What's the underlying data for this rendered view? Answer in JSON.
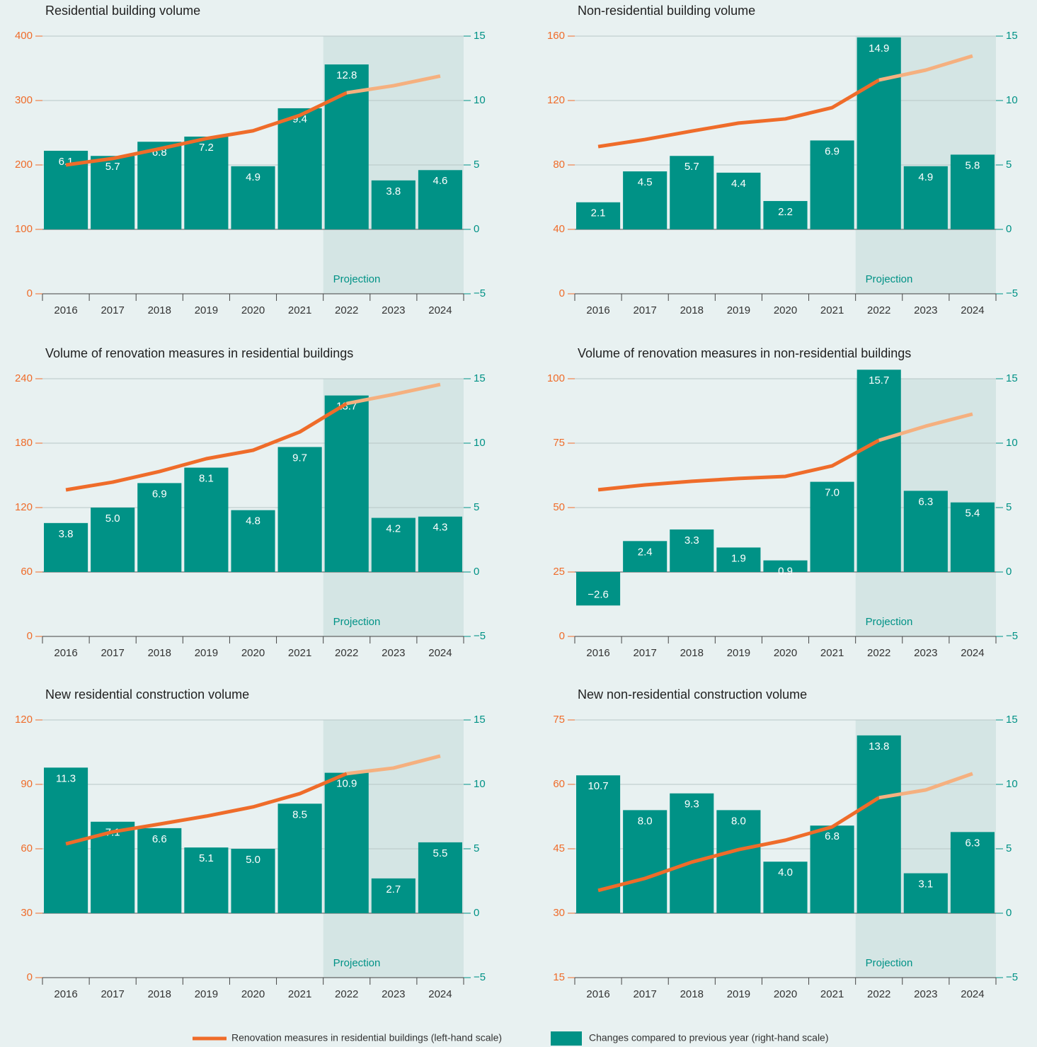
{
  "chart_data": [
    {
      "type": "bar",
      "title": "Residential building volume",
      "categories": [
        "2016",
        "2017",
        "2018",
        "2019",
        "2020",
        "2021",
        "2022",
        "2023",
        "2024"
      ],
      "series": [
        {
          "axis": "y2",
          "values": [
            6.1,
            5.7,
            6.8,
            7.2,
            4.9,
            9.4,
            12.8,
            3.8,
            4.6
          ],
          "value_labels": [
            "6.1",
            "5.7",
            "6.8",
            "7.2",
            "4.9",
            "9.4",
            "12.8",
            "3.8",
            "4.6"
          ]
        },
        {
          "type": "line",
          "values": [
            200,
            210,
            225,
            241,
            253,
            277,
            312,
            323,
            338
          ],
          "projection_color": "#f5b07f"
        }
      ],
      "ylim": [
        0,
        400
      ],
      "yticks": [
        0,
        100,
        200,
        300,
        400
      ],
      "y2lim": [
        -5,
        15
      ],
      "y2ticks": [
        {
          "value": -5,
          "label": "−5"
        },
        0,
        5,
        10,
        15
      ],
      "grid": true,
      "projection_from": "2022",
      "annotation": "Projection"
    },
    {
      "type": "bar",
      "title": "Non-residential building volume",
      "categories": [
        "2016",
        "2017",
        "2018",
        "2019",
        "2020",
        "2021",
        "2022",
        "2023",
        "2024"
      ],
      "series": [
        {
          "axis": "y2",
          "values": [
            2.1,
            4.5,
            5.7,
            4.4,
            2.2,
            6.9,
            14.9,
            4.9,
            5.8
          ],
          "value_labels": [
            "2.1",
            "4.5",
            "5.7",
            "4.4",
            "2.2",
            "6.9",
            "14.9",
            "4.9",
            "5.8"
          ]
        },
        {
          "type": "line",
          "values": [
            91.4,
            95.8,
            101,
            106,
            108.6,
            115.6,
            132.7,
            138.9,
            147.7
          ],
          "projection_color": "#f5b07f"
        }
      ],
      "ylim": [
        0,
        160
      ],
      "yticks": [
        0,
        40,
        80,
        120,
        160
      ],
      "y2lim": [
        -5,
        15
      ],
      "y2ticks": [
        {
          "value": -5,
          "label": "−5"
        },
        0,
        5,
        10,
        15
      ],
      "grid": true,
      "projection_from": "2022",
      "annotation": "Projection"
    },
    {
      "type": "bar",
      "title": "Volume of renovation measures in residential buildings",
      "categories": [
        "2016",
        "2017",
        "2018",
        "2019",
        "2020",
        "2021",
        "2022",
        "2023",
        "2024"
      ],
      "series": [
        {
          "axis": "y2",
          "values": [
            3.8,
            5.0,
            6.9,
            8.1,
            4.8,
            9.7,
            13.7,
            4.2,
            4.3
          ],
          "value_labels": [
            "3.8",
            "5.0",
            "6.9",
            "8.1",
            "4.8",
            "9.7",
            "13.7",
            "4.2",
            "4.3"
          ]
        },
        {
          "type": "line",
          "values": [
            136.5,
            143.7,
            153.6,
            165.5,
            173.4,
            190.5,
            216.9,
            225.4,
            234.7
          ],
          "projection_color": "#f5b07f"
        }
      ],
      "ylim": [
        0,
        240
      ],
      "yticks": [
        0,
        60,
        120,
        180,
        240
      ],
      "y2lim": [
        -5,
        15
      ],
      "y2ticks": [
        {
          "value": -5,
          "label": "−5"
        },
        0,
        5,
        10,
        15
      ],
      "grid": true,
      "projection_from": "2022",
      "annotation": "Projection"
    },
    {
      "type": "bar",
      "title": "Volume of renovation measures in non-residential buildings",
      "categories": [
        "2016",
        "2017",
        "2018",
        "2019",
        "2020",
        "2021",
        "2022",
        "2023",
        "2024"
      ],
      "series": [
        {
          "axis": "y2",
          "values": [
            -2.6,
            2.4,
            3.3,
            1.9,
            0.9,
            7.0,
            15.7,
            6.3,
            5.4
          ],
          "value_labels": [
            "−2.6",
            "2.4",
            "3.3",
            "1.9",
            "0.9",
            "7.0",
            "15.7",
            "6.3",
            "5.4"
          ]
        },
        {
          "type": "line",
          "values": [
            56.9,
            58.8,
            60.2,
            61.3,
            62.1,
            66.2,
            76.1,
            81.6,
            86.3
          ],
          "projection_color": "#f5b07f"
        }
      ],
      "ylim": [
        0,
        100
      ],
      "yticks": [
        0,
        25,
        50,
        75,
        100
      ],
      "y2lim": [
        -5,
        15
      ],
      "y2ticks": [
        {
          "value": -5,
          "label": "−5"
        },
        0,
        5,
        10,
        15
      ],
      "grid": true,
      "projection_from": "2022",
      "annotation": "Projection"
    },
    {
      "type": "bar",
      "title": "New residential construction volume",
      "categories": [
        "2016",
        "2017",
        "2018",
        "2019",
        "2020",
        "2021",
        "2022",
        "2023",
        "2024"
      ],
      "series": [
        {
          "axis": "y2",
          "values": [
            11.3,
            7.1,
            6.6,
            5.1,
            5.0,
            8.5,
            10.9,
            2.7,
            5.5
          ],
          "value_labels": [
            "11.3",
            "7.1",
            "6.6",
            "5.1",
            "5.0",
            "8.5",
            "10.9",
            "2.7",
            "5.5"
          ]
        },
        {
          "type": "line",
          "values": [
            62.3,
            67.9,
            71.5,
            75.2,
            79.5,
            85.7,
            95.0,
            97.6,
            103.2
          ],
          "projection_color": "#f5b07f"
        }
      ],
      "ylim": [
        0,
        120
      ],
      "yticks": [
        0,
        30,
        60,
        90,
        120
      ],
      "y2lim": [
        -5,
        15
      ],
      "y2ticks": [
        {
          "value": -5,
          "label": "−5"
        },
        0,
        5,
        10,
        15
      ],
      "grid": true,
      "projection_from": "2022",
      "annotation": "Projection"
    },
    {
      "type": "bar",
      "title": "New non-residential construction volume",
      "categories": [
        "2016",
        "2017",
        "2018",
        "2019",
        "2020",
        "2021",
        "2022",
        "2023",
        "2024"
      ],
      "series": [
        {
          "axis": "y2",
          "values": [
            10.7,
            8.0,
            9.3,
            8.0,
            4.0,
            6.8,
            13.8,
            3.1,
            6.3
          ],
          "value_labels": [
            "10.7",
            "8.0",
            "9.3",
            "8.0",
            "4.0",
            "6.8",
            "13.8",
            "3.1",
            "6.3"
          ]
        },
        {
          "type": "line",
          "values": [
            35.3,
            38.1,
            41.9,
            44.8,
            47.0,
            50.1,
            56.9,
            58.7,
            62.5
          ],
          "projection_color": "#f5b07f"
        }
      ],
      "ylim": [
        15,
        75
      ],
      "yticks": [
        15,
        30,
        45,
        60,
        75
      ],
      "y2lim": [
        -5,
        15
      ],
      "y2ticks": [
        {
          "value": -5,
          "label": "−5"
        },
        0,
        5,
        10,
        15
      ],
      "grid": true,
      "projection_from": "2022",
      "annotation": "Projection"
    }
  ],
  "legend": [
    {
      "name": "Renovation measures in residential buildings (left-hand scale)",
      "color": "#ef6c2a"
    },
    {
      "name": "Changes compared to previous year (right-hand scale)",
      "color": "#009286"
    }
  ]
}
